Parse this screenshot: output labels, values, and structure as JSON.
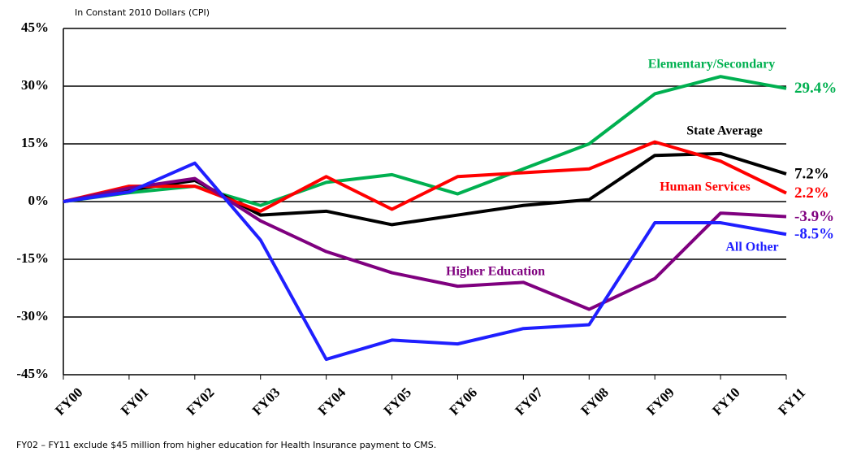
{
  "chart_data": {
    "type": "line",
    "subtitle": "In Constant 2010 Dollars (CPI)",
    "footnote": "FY02 – FY11 exclude $45 million from higher education for Health Insurance payment to CMS.",
    "categories": [
      "FY00",
      "FY01",
      "FY02",
      "FY03",
      "FY04",
      "FY05",
      "FY06",
      "FY07",
      "FY08",
      "FY09",
      "FY10",
      "FY11"
    ],
    "ylim": [
      -45,
      45
    ],
    "yticks": [
      {
        "value": -45,
        "label": "-45%"
      },
      {
        "value": -30,
        "label": "-30%"
      },
      {
        "value": -15,
        "label": "-15%"
      },
      {
        "value": 0,
        "label": "0%"
      },
      {
        "value": 15,
        "label": "15%"
      },
      {
        "value": 30,
        "label": "30%"
      },
      {
        "value": 45,
        "label": "45%"
      }
    ],
    "grid": true,
    "series": [
      {
        "name": "Elementary/Secondary",
        "color": "#00b050",
        "values": [
          0,
          2.3,
          4,
          -1,
          5,
          7,
          2,
          8.5,
          15,
          28,
          32.5,
          29.4
        ],
        "value_labels": [
          null,
          null,
          null,
          null,
          null,
          null,
          null,
          null,
          null,
          null,
          null,
          "29.4%"
        ]
      },
      {
        "name": "State Average",
        "color": "#000000",
        "values": [
          0,
          3,
          5.5,
          -3.5,
          -2.5,
          -6,
          -3.5,
          -1,
          0.5,
          12,
          12.5,
          7.2
        ],
        "value_labels": [
          null,
          null,
          null,
          null,
          null,
          null,
          null,
          null,
          null,
          null,
          null,
          "7.2%"
        ]
      },
      {
        "name": "Human Services",
        "color": "#ff0000",
        "values": [
          0,
          4,
          4,
          -2.5,
          6.5,
          -2,
          6.5,
          7.5,
          8.5,
          15.5,
          10.5,
          2.2
        ],
        "value_labels": [
          null,
          null,
          null,
          null,
          null,
          null,
          null,
          null,
          null,
          null,
          null,
          "2.2%"
        ]
      },
      {
        "name": "Higher Education",
        "color": "#7f007f",
        "values": [
          0,
          3.5,
          6,
          -5,
          -13,
          -18.5,
          -22,
          -21,
          -28,
          -20,
          -3,
          -3.9
        ],
        "value_labels": [
          null,
          null,
          null,
          null,
          null,
          null,
          null,
          null,
          null,
          null,
          null,
          "-3.9%"
        ]
      },
      {
        "name": "All Other",
        "color": "#1f1fff",
        "values": [
          0,
          2.5,
          10,
          -10,
          -41,
          -36,
          -37,
          -33,
          -32,
          -5.5,
          -5.5,
          -8.5
        ],
        "value_labels": [
          null,
          null,
          null,
          null,
          null,
          null,
          null,
          null,
          null,
          null,
          null,
          "-8.5%"
        ]
      }
    ]
  }
}
